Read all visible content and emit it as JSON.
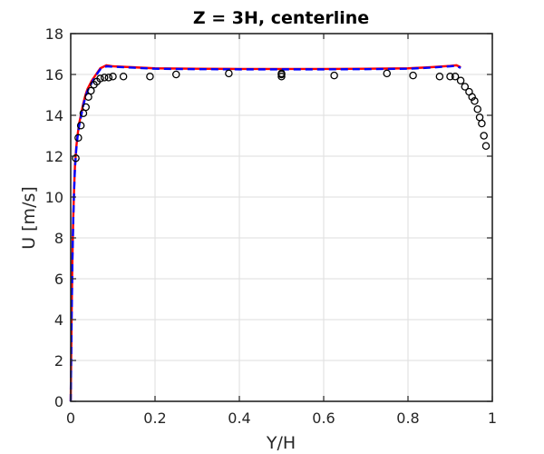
{
  "chart_data": {
    "type": "line",
    "title": "Z = 3H, centerline",
    "xlabel": "Y/H",
    "ylabel": "U [m/s]",
    "xlim": [
      0,
      1
    ],
    "ylim": [
      0,
      18
    ],
    "xticks": [
      0,
      0.2,
      0.4,
      0.6,
      0.8,
      1
    ],
    "xtick_labels": [
      "0",
      "0.2",
      "0.4",
      "0.6",
      "0.8",
      "1"
    ],
    "yticks": [
      0,
      2,
      4,
      6,
      8,
      10,
      12,
      14,
      16,
      18
    ],
    "ytick_labels": [
      "0",
      "2",
      "4",
      "6",
      "8",
      "10",
      "12",
      "14",
      "16",
      "18"
    ],
    "grid": true,
    "legend": "none",
    "series": [
      {
        "style": "solid",
        "color": "#ff0000",
        "x": [
          0.0,
          0.002,
          0.004,
          0.006,
          0.008,
          0.01,
          0.013,
          0.016,
          0.02,
          0.025,
          0.03,
          0.035,
          0.04,
          0.05,
          0.06,
          0.07,
          0.085,
          0.1,
          0.15,
          0.2,
          0.3,
          0.4,
          0.5,
          0.6,
          0.7,
          0.8,
          0.85,
          0.9,
          0.915,
          0.925
        ],
        "y": [
          0.0,
          4.0,
          7.0,
          9.0,
          10.4,
          11.5,
          12.4,
          13.0,
          13.6,
          14.1,
          14.6,
          15.0,
          15.3,
          15.7,
          16.0,
          16.3,
          16.45,
          16.4,
          16.35,
          16.3,
          16.28,
          16.27,
          16.27,
          16.27,
          16.28,
          16.3,
          16.35,
          16.42,
          16.45,
          16.35
        ]
      },
      {
        "style": "dashed",
        "color": "#0000ff",
        "x": [
          0.0,
          0.002,
          0.004,
          0.006,
          0.008,
          0.01,
          0.013,
          0.016,
          0.02,
          0.025,
          0.03,
          0.035,
          0.04,
          0.05,
          0.06,
          0.07,
          0.085,
          0.1,
          0.15,
          0.2,
          0.3,
          0.4,
          0.5,
          0.6,
          0.7,
          0.8,
          0.85,
          0.9,
          0.915,
          0.925
        ],
        "y": [
          0.0,
          3.9,
          6.9,
          8.9,
          10.3,
          11.4,
          12.3,
          12.9,
          13.5,
          14.0,
          14.5,
          14.9,
          15.2,
          15.6,
          15.95,
          16.25,
          16.4,
          16.38,
          16.33,
          16.28,
          16.26,
          16.25,
          16.25,
          16.25,
          16.26,
          16.28,
          16.33,
          16.4,
          16.42,
          16.32
        ]
      },
      {
        "style": "markers",
        "marker": "circle",
        "color": "#000000",
        "x": [
          0.012,
          0.018,
          0.024,
          0.03,
          0.036,
          0.042,
          0.048,
          0.055,
          0.062,
          0.07,
          0.08,
          0.09,
          0.1,
          0.125,
          0.188,
          0.25,
          0.375,
          0.5,
          0.5,
          0.5,
          0.625,
          0.75,
          0.812,
          0.875,
          0.9,
          0.912,
          0.925,
          0.935,
          0.945,
          0.952,
          0.958,
          0.965,
          0.97,
          0.975,
          0.98,
          0.985
        ],
        "y": [
          11.9,
          12.9,
          13.5,
          14.1,
          14.4,
          14.9,
          15.2,
          15.5,
          15.65,
          15.8,
          15.85,
          15.85,
          15.9,
          15.9,
          15.9,
          16.0,
          16.05,
          16.05,
          15.9,
          16.0,
          15.95,
          16.05,
          15.95,
          15.9,
          15.9,
          15.9,
          15.7,
          15.4,
          15.15,
          14.9,
          14.7,
          14.3,
          13.9,
          13.6,
          13.0,
          12.5
        ]
      }
    ]
  }
}
